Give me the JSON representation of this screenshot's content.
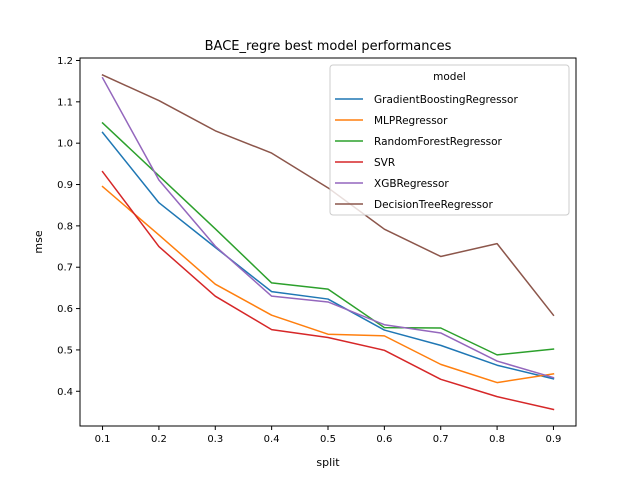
{
  "chart_data": {
    "type": "line",
    "title": "BACE_regre best model performances",
    "xlabel": "split",
    "ylabel": "mse",
    "x": [
      0.1,
      0.2,
      0.3,
      0.4,
      0.5,
      0.6,
      0.7,
      0.8,
      0.9
    ],
    "x_ticks": [
      "0.1",
      "0.2",
      "0.3",
      "0.4",
      "0.5",
      "0.6",
      "0.7",
      "0.8",
      "0.9"
    ],
    "y_ticks": [
      "0.4",
      "0.5",
      "0.6",
      "0.7",
      "0.8",
      "0.9",
      "1.0",
      "1.1",
      "1.2"
    ],
    "xlim": [
      0.06,
      0.94
    ],
    "ylim": [
      0.316,
      1.206
    ],
    "grid": false,
    "legend": {
      "title": "model",
      "placement": "top-right"
    },
    "series": [
      {
        "name": "GradientBoostingRegressor",
        "color": "#1f77b4",
        "values": [
          1.026,
          0.856,
          0.748,
          0.641,
          0.623,
          0.548,
          0.511,
          0.463,
          0.43
        ]
      },
      {
        "name": "MLPRegressor",
        "color": "#ff7f0e",
        "values": [
          0.895,
          0.778,
          0.659,
          0.584,
          0.538,
          0.534,
          0.465,
          0.421,
          0.442
        ]
      },
      {
        "name": "RandomForestRegressor",
        "color": "#2ca02c",
        "values": [
          1.049,
          0.921,
          0.793,
          0.662,
          0.647,
          0.554,
          0.553,
          0.488,
          0.502
        ]
      },
      {
        "name": "SVR",
        "color": "#d62728",
        "values": [
          0.931,
          0.75,
          0.63,
          0.549,
          0.53,
          0.499,
          0.429,
          0.387,
          0.356
        ]
      },
      {
        "name": "XGBRegressor",
        "color": "#9467bd",
        "values": [
          1.158,
          0.911,
          0.751,
          0.63,
          0.616,
          0.561,
          0.541,
          0.473,
          0.433
        ]
      },
      {
        "name": "DecisionTreeRegressor",
        "color": "#8c564b",
        "values": [
          1.165,
          1.103,
          1.03,
          0.976,
          0.892,
          0.792,
          0.726,
          0.757,
          0.584
        ]
      }
    ]
  }
}
